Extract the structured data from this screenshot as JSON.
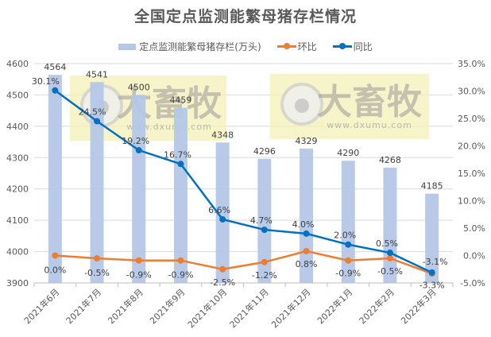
{
  "chart_data": {
    "type": "bar+line",
    "title": "全国定点监测能繁母猪存栏情况",
    "categories": [
      "2021年6月",
      "2021年7月",
      "2021年8月",
      "2021年9月",
      "2021年10月",
      "2021年11月",
      "2021年12月",
      "2022年1月",
      "2022年2月",
      "2022年3月"
    ],
    "series": [
      {
        "name": "定点监测能繁母猪存栏(万头)",
        "type": "bar",
        "axis": "left",
        "color": "#b4c7e7",
        "values": [
          4564,
          4541,
          4500,
          4459,
          4348,
          4296,
          4329,
          4290,
          4268,
          4185
        ],
        "labels": [
          "4564",
          "4541",
          "4500",
          "4459",
          "4348",
          "4296",
          "4329",
          "4290",
          "4268",
          "4185"
        ]
      },
      {
        "name": "环比",
        "type": "line",
        "axis": "right",
        "color": "#ed7d31",
        "values": [
          0.0,
          -0.5,
          -0.9,
          -0.9,
          -2.5,
          -1.2,
          0.8,
          -0.9,
          -0.5,
          -3.3
        ],
        "labels": [
          "0.0%",
          "-0.5%",
          "-0.9%",
          "-0.9%",
          "-2.5%",
          "-1.2%",
          "0.8%",
          "-0.9%",
          "-0.5%",
          "-3.3%"
        ]
      },
      {
        "name": "同比",
        "type": "line",
        "axis": "right",
        "color": "#0070c0",
        "values": [
          30.1,
          24.5,
          19.2,
          16.7,
          6.6,
          4.7,
          4.0,
          2.0,
          0.5,
          -3.1
        ],
        "labels": [
          "30.1%",
          "24.5%",
          "19.2%",
          "16.7%",
          "6.6%",
          "4.7%",
          "4.0%",
          "2.0%",
          "0.5%",
          "-3.1%"
        ]
      }
    ],
    "left_axis": {
      "min": 3900,
      "max": 4600,
      "ticks": [
        "3900",
        "4000",
        "4100",
        "4200",
        "4300",
        "4400",
        "4500",
        "4600"
      ]
    },
    "right_axis": {
      "min": -5,
      "max": 35,
      "ticks": [
        "-5.0%",
        "0.0%",
        "5.0%",
        "10.0%",
        "15.0%",
        "20.0%",
        "25.0%",
        "30.0%",
        "35.0%"
      ]
    },
    "grid": true,
    "legend_position": "top"
  },
  "legend": {
    "bar_label": "定点监测能繁母猪存栏(万头)",
    "mom_label": "环比",
    "yoy_label": "同比"
  },
  "watermark": {
    "brand": "大畜牧",
    "url": "www.dxumu.com"
  }
}
